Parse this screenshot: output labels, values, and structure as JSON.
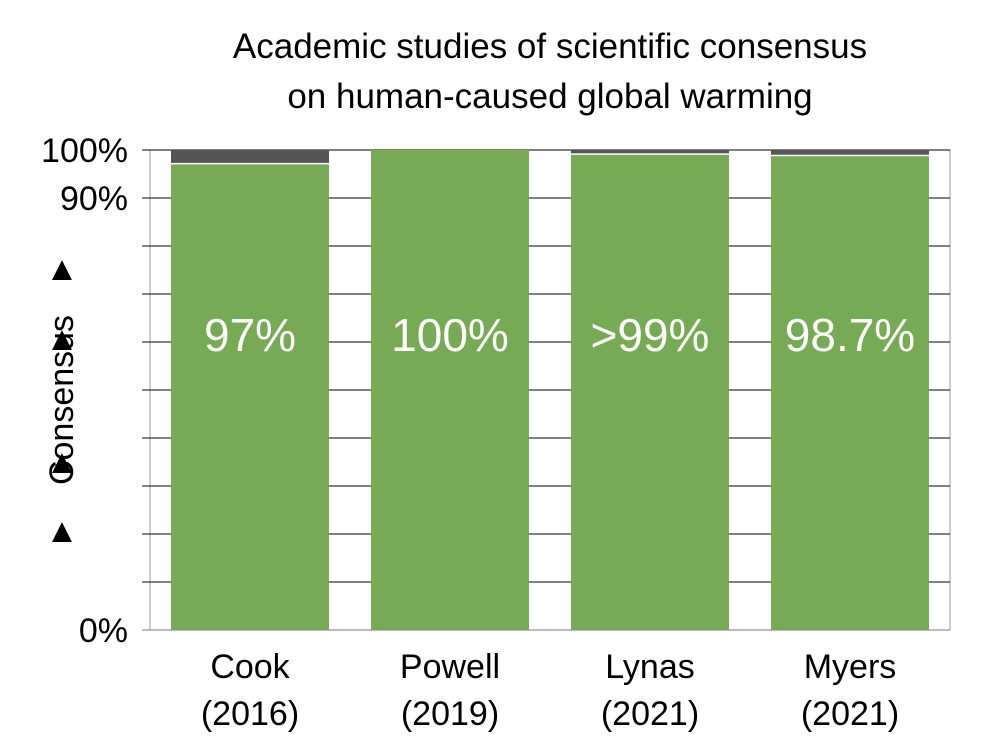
{
  "chart_data": {
    "type": "bar",
    "stacked": true,
    "title_lines": [
      "Academic studies of scientific consensus",
      "on human-caused global warming"
    ],
    "ylabel": "Consensus",
    "ylabel_arrows": [
      "▲",
      "▲",
      "▲",
      "▲"
    ],
    "ylim": [
      0,
      100
    ],
    "yticks": [
      {
        "value": 100,
        "label": "100%"
      },
      {
        "value": 90,
        "label": "90%"
      },
      {
        "value": 0,
        "label": "0%"
      }
    ],
    "minor_gridlines": [
      0,
      10,
      20,
      30,
      40,
      50,
      60,
      70,
      80,
      90,
      100
    ],
    "grid": true,
    "categories": [
      {
        "line1": "Cook",
        "line2": "(2016)"
      },
      {
        "line1": "Powell",
        "line2": "(2019)"
      },
      {
        "line1": "Lynas",
        "line2": "(2021)"
      },
      {
        "line1": "Myers",
        "line2": "(2021)"
      }
    ],
    "series": [
      {
        "color": "#77aa55",
        "values": [
          97,
          100,
          99,
          98.7
        ],
        "labels": [
          "97%",
          "100%",
          ">99%",
          "98.7%"
        ]
      },
      {
        "color": "#555555",
        "values": [
          3,
          0,
          1,
          1.3
        ]
      }
    ]
  }
}
